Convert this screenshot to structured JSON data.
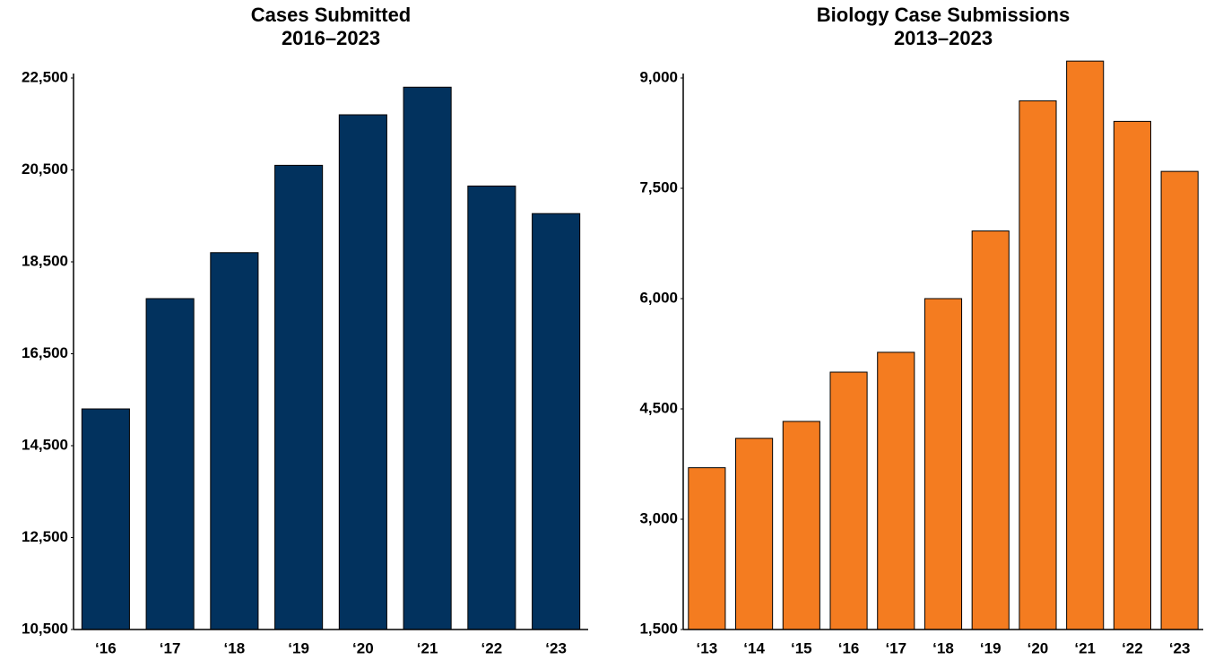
{
  "chart_data": [
    {
      "type": "bar",
      "title": "Cases Submitted",
      "subtitle": "2016–2023",
      "categories": [
        "‘16",
        "‘17",
        "‘18",
        "‘19",
        "‘20",
        "‘21",
        "‘22",
        "‘23"
      ],
      "values": [
        15300,
        17700,
        18700,
        20600,
        21700,
        22300,
        20150,
        19550
      ],
      "color": "#02325e",
      "ylim": [
        10500,
        22500
      ],
      "yticks": [
        {
          "value": 10500,
          "label": "10,500"
        },
        {
          "value": 12500,
          "label": "12,500"
        },
        {
          "value": 14500,
          "label": "14,500"
        },
        {
          "value": 16500,
          "label": "16,500"
        },
        {
          "value": 18500,
          "label": "18,500"
        },
        {
          "value": 20500,
          "label": "20,500"
        },
        {
          "value": 22500,
          "label": "22,500"
        }
      ],
      "grid": false
    },
    {
      "type": "bar",
      "title": "Biology Case Submissions",
      "subtitle": "2013–2023",
      "categories": [
        "‘13",
        "‘14",
        "‘15",
        "‘16",
        "‘17",
        "‘18",
        "‘19",
        "‘20",
        "‘21",
        "‘22",
        "‘23"
      ],
      "values": [
        3700,
        4100,
        4330,
        5000,
        5270,
        6000,
        6920,
        8690,
        9230,
        8410,
        7730
      ],
      "color": "#f47c20",
      "ylim": [
        1500,
        9000
      ],
      "yticks": [
        {
          "value": 1500,
          "label": "1,500"
        },
        {
          "value": 3000,
          "label": "3,000"
        },
        {
          "value": 4500,
          "label": "4,500"
        },
        {
          "value": 6000,
          "label": "6,000"
        },
        {
          "value": 7500,
          "label": "7,500"
        },
        {
          "value": 9000,
          "label": "9,000"
        }
      ],
      "grid": false
    }
  ]
}
